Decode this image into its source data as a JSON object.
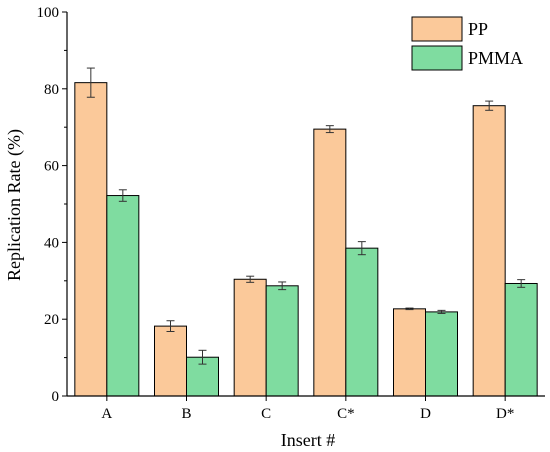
{
  "chart_data": {
    "type": "bar",
    "categories": [
      "A",
      "B",
      "C",
      "C*",
      "D",
      "D*"
    ],
    "series": [
      {
        "name": "PP",
        "color": "#fbc99a",
        "values": [
          81.6,
          18.2,
          30.4,
          69.5,
          22.7,
          75.6
        ],
        "errors": [
          3.8,
          1.4,
          0.8,
          0.9,
          0.2,
          1.2
        ]
      },
      {
        "name": "PMMA",
        "color": "#7fdca0",
        "values": [
          52.2,
          10.1,
          28.7,
          38.5,
          21.9,
          29.3
        ],
        "errors": [
          1.5,
          1.8,
          1.0,
          1.7,
          0.4,
          1.0
        ]
      }
    ],
    "xlabel": "Insert #",
    "ylabel": "Replication Rate (%)",
    "ylim": [
      0,
      100
    ],
    "yticks": [
      0,
      20,
      40,
      60,
      80,
      100
    ],
    "legend_position": "top-right",
    "grid": false
  }
}
